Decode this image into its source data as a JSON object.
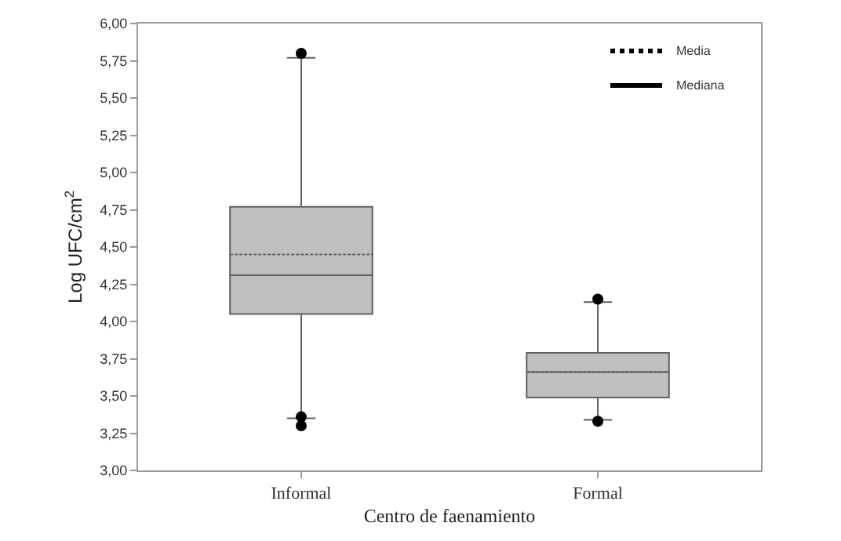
{
  "chart_data": {
    "type": "box",
    "xlabel": "Centro de faenamiento",
    "ylabel": "Log UFC/cm$^{2}$",
    "categories": [
      "Informal",
      "Formal"
    ],
    "boxes": [
      {
        "low": 3.35,
        "q1": 4.05,
        "median": 4.31,
        "q3": 4.77,
        "high": 5.77,
        "mean": 4.45,
        "outliers": [
          5.8,
          3.36,
          3.3
        ]
      },
      {
        "low": 3.34,
        "q1": 3.49,
        "median": 3.66,
        "q3": 3.79,
        "high": 4.13,
        "mean": 3.66,
        "outliers": [
          4.15,
          3.33
        ]
      }
    ],
    "color": "#c0c0c0",
    "ylim": [
      3,
      6
    ],
    "yticks": [
      {
        "value": 3,
        "label": "3,00"
      },
      {
        "value": 3.25,
        "label": "3,25"
      },
      {
        "value": 3.5,
        "label": "3,50"
      },
      {
        "value": 3.75,
        "label": "3,75"
      },
      {
        "value": 4,
        "label": "4,00"
      },
      {
        "value": 4.25,
        "label": "4,25"
      },
      {
        "value": 4.5,
        "label": "4,50"
      },
      {
        "value": 4.75,
        "label": "4,75"
      },
      {
        "value": 5,
        "label": "5,00"
      },
      {
        "value": 5.25,
        "label": "5,25"
      },
      {
        "value": 5.5,
        "label": "5,50"
      },
      {
        "value": 5.75,
        "label": "5,75"
      },
      {
        "value": 6,
        "label": "6,00"
      }
    ],
    "annotations": [
      "Media",
      "Mediana"
    ],
    "grid": false
  }
}
